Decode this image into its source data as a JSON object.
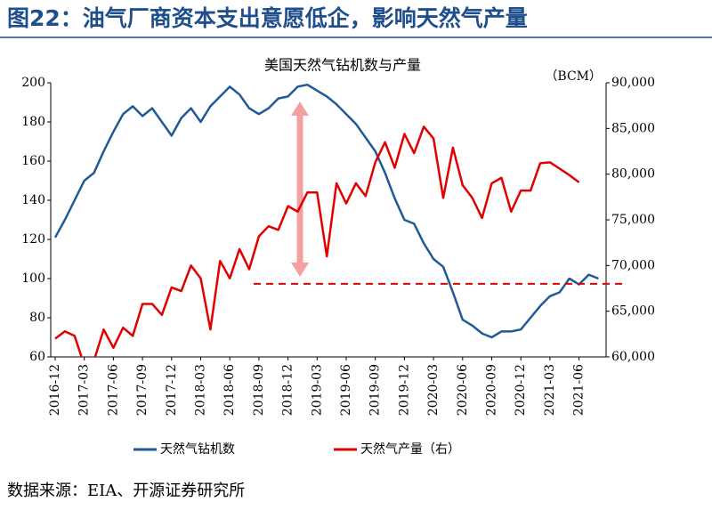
{
  "chart_data": {
    "type": "line",
    "title": "图22：油气厂商资本支出意愿低企，影响天然气产量",
    "subtitle": "美国天然气钻机数与产量",
    "y2_unit_label": "（BCM）",
    "source": "数据来源：EIA、开源证券研究所",
    "categories": [
      "2016-12",
      null,
      null,
      "2017-03",
      null,
      null,
      "2017-06",
      null,
      null,
      "2017-09",
      null,
      null,
      "2017-12",
      null,
      null,
      "2018-03",
      null,
      null,
      "2018-06",
      null,
      null,
      "2018-09",
      null,
      null,
      "2018-12",
      null,
      null,
      "2019-03",
      null,
      null,
      "2019-06",
      null,
      null,
      "2019-09",
      null,
      null,
      "2019-12",
      null,
      null,
      "2020-03",
      null,
      null,
      "2020-06",
      null,
      null,
      "2020-09",
      null,
      null,
      "2020-12",
      null,
      null,
      "2021-03",
      null,
      null,
      "2021-06",
      null,
      null
    ],
    "series": [
      {
        "name": "天然气钻机数",
        "color": "#1f5a96",
        "axis": "y",
        "values": [
          121,
          130,
          140,
          150,
          154,
          165,
          175,
          184,
          188,
          183,
          187,
          180,
          173,
          182,
          187,
          180,
          188,
          193,
          198,
          194,
          187,
          184,
          187,
          192,
          193,
          198,
          199,
          196,
          193,
          189,
          184,
          179,
          172,
          165,
          154,
          141,
          130,
          128,
          118,
          110,
          106,
          93,
          79,
          76,
          72,
          70,
          73,
          73,
          74,
          80,
          86,
          91,
          93,
          100,
          97,
          102,
          100
        ]
      },
      {
        "name": "天然气产量（右）",
        "color": "#e00000",
        "axis": "y2",
        "values": [
          62000,
          62800,
          62300,
          59100,
          59600,
          63000,
          61000,
          63200,
          62300,
          65800,
          65800,
          64600,
          67600,
          67200,
          70000,
          68600,
          63000,
          70500,
          68600,
          71800,
          69600,
          73200,
          74300,
          73900,
          76500,
          75900,
          78000,
          78000,
          71000,
          79000,
          76800,
          79000,
          77600,
          81300,
          83500,
          80700,
          84400,
          82300,
          85200,
          83900,
          77400,
          82900,
          78800,
          77400,
          75200,
          79000,
          79600,
          75900,
          78200,
          78200,
          81200,
          81300,
          80600,
          79900,
          79100,
          null,
          null
        ]
      }
    ],
    "reference_line": {
      "value": 68000,
      "axis": "y2",
      "color": "#e00000"
    },
    "ylim": [
      60,
      200
    ],
    "yticks": [
      60,
      80,
      100,
      120,
      140,
      160,
      180,
      200
    ],
    "y2lim": [
      60000,
      90000
    ],
    "y2ticks": [
      {
        "value": 60000,
        "label": "60,000"
      },
      {
        "value": 65000,
        "label": "65,000"
      },
      {
        "value": 70000,
        "label": "70,000"
      },
      {
        "value": 75000,
        "label": "75,000"
      },
      {
        "value": 80000,
        "label": "80,000"
      },
      {
        "value": 85000,
        "label": "85,000"
      },
      {
        "value": 90000,
        "label": "90,000"
      }
    ]
  }
}
